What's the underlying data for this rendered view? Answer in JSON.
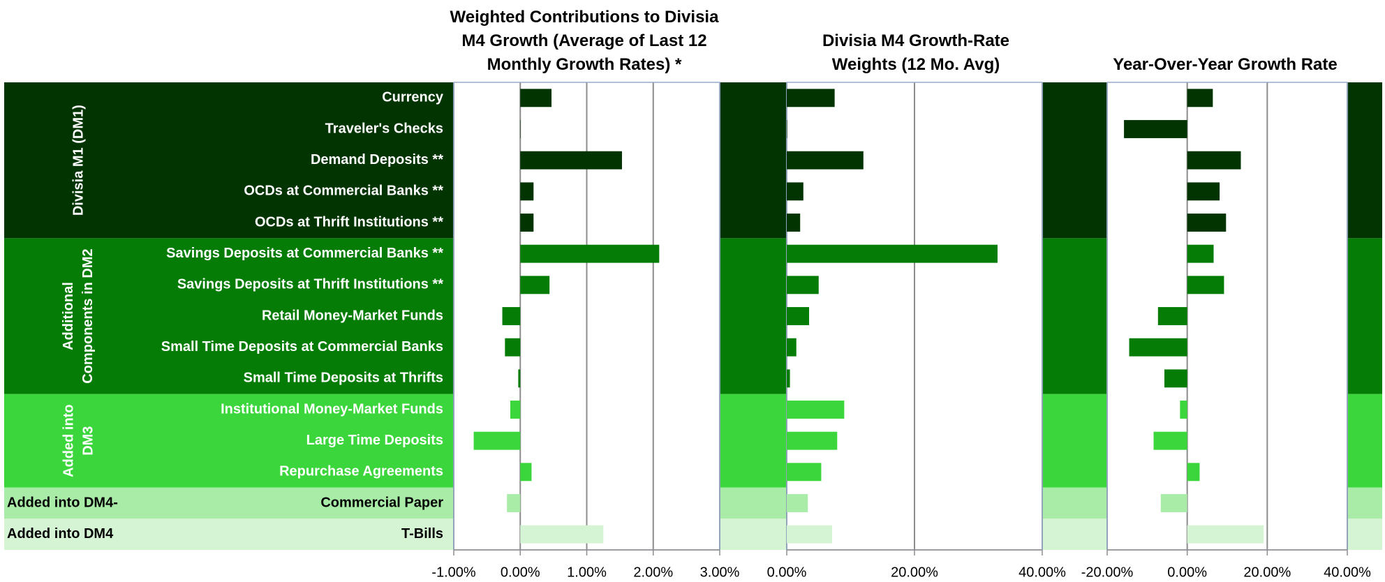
{
  "chart_data": {
    "type": "bar",
    "orientation": "horizontal",
    "grid": true,
    "groups": [
      {
        "label": "Divisia M1 (DM1)",
        "color": "#023402",
        "categories": [
          "Currency",
          "Traveler's Checks",
          "Demand Deposits **",
          "OCDs at Commercial Banks **",
          "OCDs at Thrift Institutions **"
        ]
      },
      {
        "label": "Additional Components in DM2",
        "color": "#057c05",
        "categories": [
          "Savings Deposits at Commercial Banks **",
          "Savings Deposits at Thrift Institutions **",
          "Retail Money-Market Funds",
          "Small Time Deposits at Commercial Banks",
          "Small Time Deposits at Thrifts"
        ]
      },
      {
        "label": "Added into DM3",
        "color": "#3bd63b",
        "categories": [
          "Institutional Money-Market Funds",
          "Large Time Deposits",
          "Repurchase Agreements"
        ]
      },
      {
        "label": "Added into DM4-",
        "color": "#a8eca8",
        "categories": [
          "Commercial Paper"
        ]
      },
      {
        "label": "Added into DM4",
        "color": "#d4f4d4",
        "categories": [
          "T-Bills"
        ]
      }
    ],
    "panels": [
      {
        "title": "Weighted Contributions to Divisia M4 Growth (Average of Last 12 Monthly Growth Rates) *",
        "values": [
          0.47,
          0.0,
          1.53,
          0.2,
          0.2,
          2.09,
          0.44,
          -0.27,
          -0.23,
          -0.03,
          -0.15,
          -0.7,
          0.17,
          -0.2,
          1.25
        ],
        "xlim": [
          -1,
          3
        ],
        "xticks": [
          {
            "value": -1,
            "label": "-1.00%"
          },
          {
            "value": 0,
            "label": "0.00%"
          },
          {
            "value": 1,
            "label": "1.00%"
          },
          {
            "value": 2,
            "label": "2.00%"
          },
          {
            "value": 3,
            "label": "3.00%"
          }
        ]
      },
      {
        "title": "Divisia M4 Growth-Rate Weights (12 Mo. Avg)",
        "values": [
          7.5,
          0.05,
          12.0,
          2.6,
          2.1,
          33.0,
          5.0,
          3.5,
          1.5,
          0.5,
          9.0,
          7.9,
          5.4,
          3.3,
          7.1
        ],
        "xlim": [
          0,
          40
        ],
        "xticks": [
          {
            "value": 0,
            "label": "0.00%"
          },
          {
            "value": 20,
            "label": "20.00%"
          },
          {
            "value": 40,
            "label": "40.00%"
          }
        ]
      },
      {
        "title": "Year-Over-Year Growth Rate",
        "values": [
          6.4,
          -15.8,
          13.4,
          8.1,
          9.7,
          6.6,
          9.2,
          -7.3,
          -14.5,
          -5.7,
          -1.8,
          -8.4,
          3.1,
          -6.6,
          19.1
        ],
        "xlim": [
          -20,
          40
        ],
        "xticks": [
          {
            "value": -20,
            "label": "-20.00%"
          },
          {
            "value": 0,
            "label": "0.00%"
          },
          {
            "value": 20,
            "label": "20.00%"
          },
          {
            "value": 40,
            "label": "40.00%"
          }
        ]
      }
    ]
  }
}
